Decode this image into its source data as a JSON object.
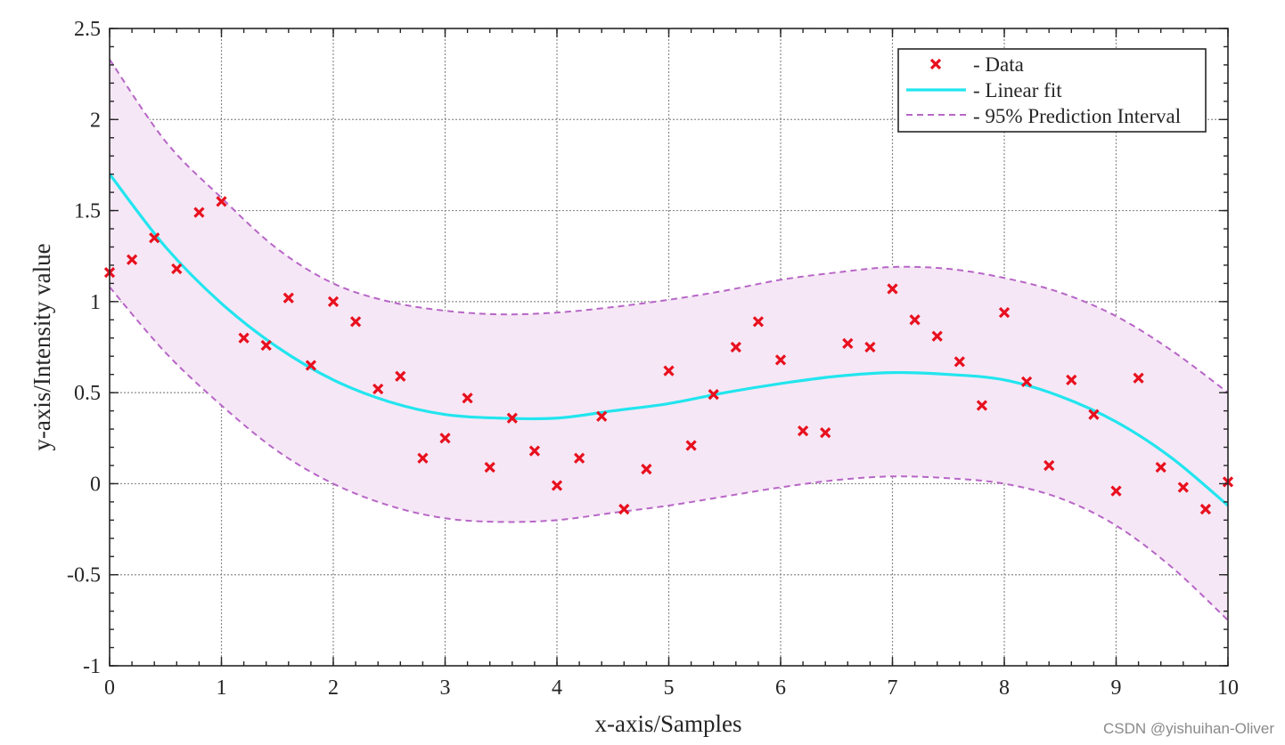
{
  "chart_data": {
    "type": "scatter",
    "title": "",
    "xlabel": "x-axis/Samples",
    "ylabel": "y-axis/Intensity value",
    "xlim": [
      0,
      10
    ],
    "ylim": [
      -1,
      2.5
    ],
    "grid": true,
    "legend_position": "top-right",
    "xticks": [
      0,
      1,
      2,
      3,
      4,
      5,
      6,
      7,
      8,
      9,
      10
    ],
    "yticks": [
      -1,
      -0.5,
      0,
      0.5,
      1,
      1.5,
      2,
      2.5
    ],
    "x_tick_labels": [
      "0",
      "1",
      "2",
      "3",
      "4",
      "5",
      "6",
      "7",
      "8",
      "9",
      "10"
    ],
    "y_tick_labels": [
      "-1",
      "-0.5",
      "0",
      "0.5",
      "1",
      "1.5",
      "2",
      "2.5"
    ],
    "legend": [
      {
        "label": "- Data",
        "style": "marker-x",
        "color": "#e8101e"
      },
      {
        "label": "- Linear fit",
        "style": "solid",
        "color": "#22e5ee"
      },
      {
        "label": "- 95% Prediction Interval",
        "style": "dashed",
        "color": "#b766c6"
      }
    ],
    "colors": {
      "data": "#e8101e",
      "fit": "#22e5ee",
      "interval_line": "#b766c6",
      "interval_fill": "#f6e7f6",
      "grid": "#8c8c8c",
      "axis": "#262626"
    },
    "series": [
      {
        "name": "Data",
        "x": [
          0,
          0.2,
          0.4,
          0.6,
          0.8,
          1.0,
          1.2,
          1.4,
          1.6,
          1.8,
          2.0,
          2.2,
          2.4,
          2.6,
          2.8,
          3.0,
          3.2,
          3.4,
          3.6,
          3.8,
          4.0,
          4.2,
          4.4,
          4.6,
          4.8,
          5.0,
          5.2,
          5.4,
          5.6,
          5.8,
          6.0,
          6.2,
          6.4,
          6.6,
          6.8,
          7.0,
          7.2,
          7.4,
          7.6,
          7.8,
          8.0,
          8.2,
          8.4,
          8.6,
          8.8,
          9.0,
          9.2,
          9.4,
          9.6,
          9.8,
          10.0
        ],
        "y": [
          1.16,
          1.23,
          1.35,
          1.18,
          1.49,
          1.55,
          0.8,
          0.76,
          1.02,
          0.65,
          1.0,
          0.89,
          0.52,
          0.59,
          0.14,
          0.25,
          0.47,
          0.09,
          0.36,
          0.18,
          -0.01,
          0.14,
          0.37,
          -0.14,
          0.08,
          0.62,
          0.21,
          0.49,
          0.75,
          0.89,
          0.68,
          0.29,
          0.28,
          0.77,
          0.75,
          1.07,
          0.9,
          0.81,
          0.67,
          0.43,
          0.94,
          0.56,
          0.1,
          0.57,
          0.38,
          -0.04,
          0.58,
          0.09,
          -0.02,
          -0.14,
          0.01
        ]
      },
      {
        "name": "Linear fit",
        "x": [
          0,
          0.5,
          1,
          1.5,
          2,
          2.5,
          3,
          3.5,
          4,
          4.5,
          5,
          5.5,
          6,
          6.5,
          7,
          7.5,
          8,
          8.5,
          9,
          9.5,
          10
        ],
        "y": [
          1.7,
          1.3,
          0.99,
          0.75,
          0.57,
          0.45,
          0.38,
          0.36,
          0.36,
          0.4,
          0.44,
          0.5,
          0.55,
          0.59,
          0.61,
          0.6,
          0.57,
          0.48,
          0.34,
          0.14,
          -0.12
        ]
      },
      {
        "name": "95% Prediction Interval (upper)",
        "x": [
          0,
          0.5,
          1,
          1.5,
          2,
          2.5,
          3,
          3.5,
          4,
          4.5,
          5,
          5.5,
          6,
          6.5,
          7,
          7.5,
          8,
          8.5,
          9,
          9.5,
          10
        ],
        "y": [
          2.33,
          1.88,
          1.57,
          1.29,
          1.1,
          1.0,
          0.95,
          0.93,
          0.94,
          0.97,
          1.01,
          1.06,
          1.12,
          1.16,
          1.19,
          1.18,
          1.13,
          1.05,
          0.92,
          0.73,
          0.5
        ]
      },
      {
        "name": "95% Prediction Interval (lower)",
        "x": [
          0,
          0.5,
          1,
          1.5,
          2,
          2.5,
          3,
          3.5,
          4,
          4.5,
          5,
          5.5,
          6,
          6.5,
          7,
          7.5,
          8,
          8.5,
          9,
          9.5,
          10
        ],
        "y": [
          1.08,
          0.72,
          0.43,
          0.18,
          0.0,
          -0.12,
          -0.19,
          -0.21,
          -0.2,
          -0.16,
          -0.12,
          -0.07,
          -0.02,
          0.02,
          0.04,
          0.03,
          0.0,
          -0.08,
          -0.23,
          -0.46,
          -0.75
        ]
      }
    ]
  },
  "watermark": "CSDN @yishuihan-Oliver"
}
